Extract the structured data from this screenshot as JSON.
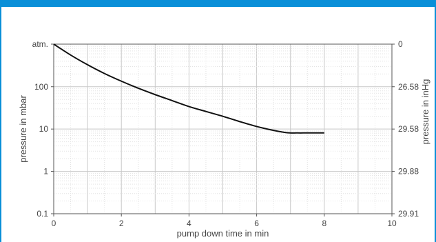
{
  "chart_data": {
    "type": "line",
    "xlabel": "pump down time in min",
    "ylabel": "pressure in mbar",
    "y2label": "pressure in inHg",
    "xlim": [
      0,
      10
    ],
    "ylim": [
      0.1,
      1013
    ],
    "yscale": "log",
    "grid": true,
    "x_ticks": [
      0,
      2,
      4,
      6,
      8,
      10
    ],
    "y_ticks": [
      {
        "value": 1013,
        "label": "atm."
      },
      {
        "value": 100,
        "label": "100"
      },
      {
        "value": 10,
        "label": "10"
      },
      {
        "value": 1,
        "label": "1"
      },
      {
        "value": 0.1,
        "label": "0.1"
      }
    ],
    "y2_ticks": [
      {
        "value": 1013,
        "label": "0"
      },
      {
        "value": 100,
        "label": "26.58"
      },
      {
        "value": 10,
        "label": "29.58"
      },
      {
        "value": 1,
        "label": "29.88"
      },
      {
        "value": 0.1,
        "label": "29.91"
      }
    ],
    "series": [
      {
        "color": "#111111",
        "x": [
          0,
          0.5,
          1,
          1.5,
          2,
          2.5,
          3,
          3.5,
          4,
          4.5,
          5,
          5.5,
          6,
          6.5,
          6.9,
          7.2,
          7.5,
          8
        ],
        "y": [
          1013,
          560,
          330,
          205,
          135,
          92,
          65,
          47,
          34,
          26,
          20,
          15,
          11.5,
          9.3,
          8.2,
          8.1,
          8.1,
          8.1
        ]
      }
    ]
  }
}
